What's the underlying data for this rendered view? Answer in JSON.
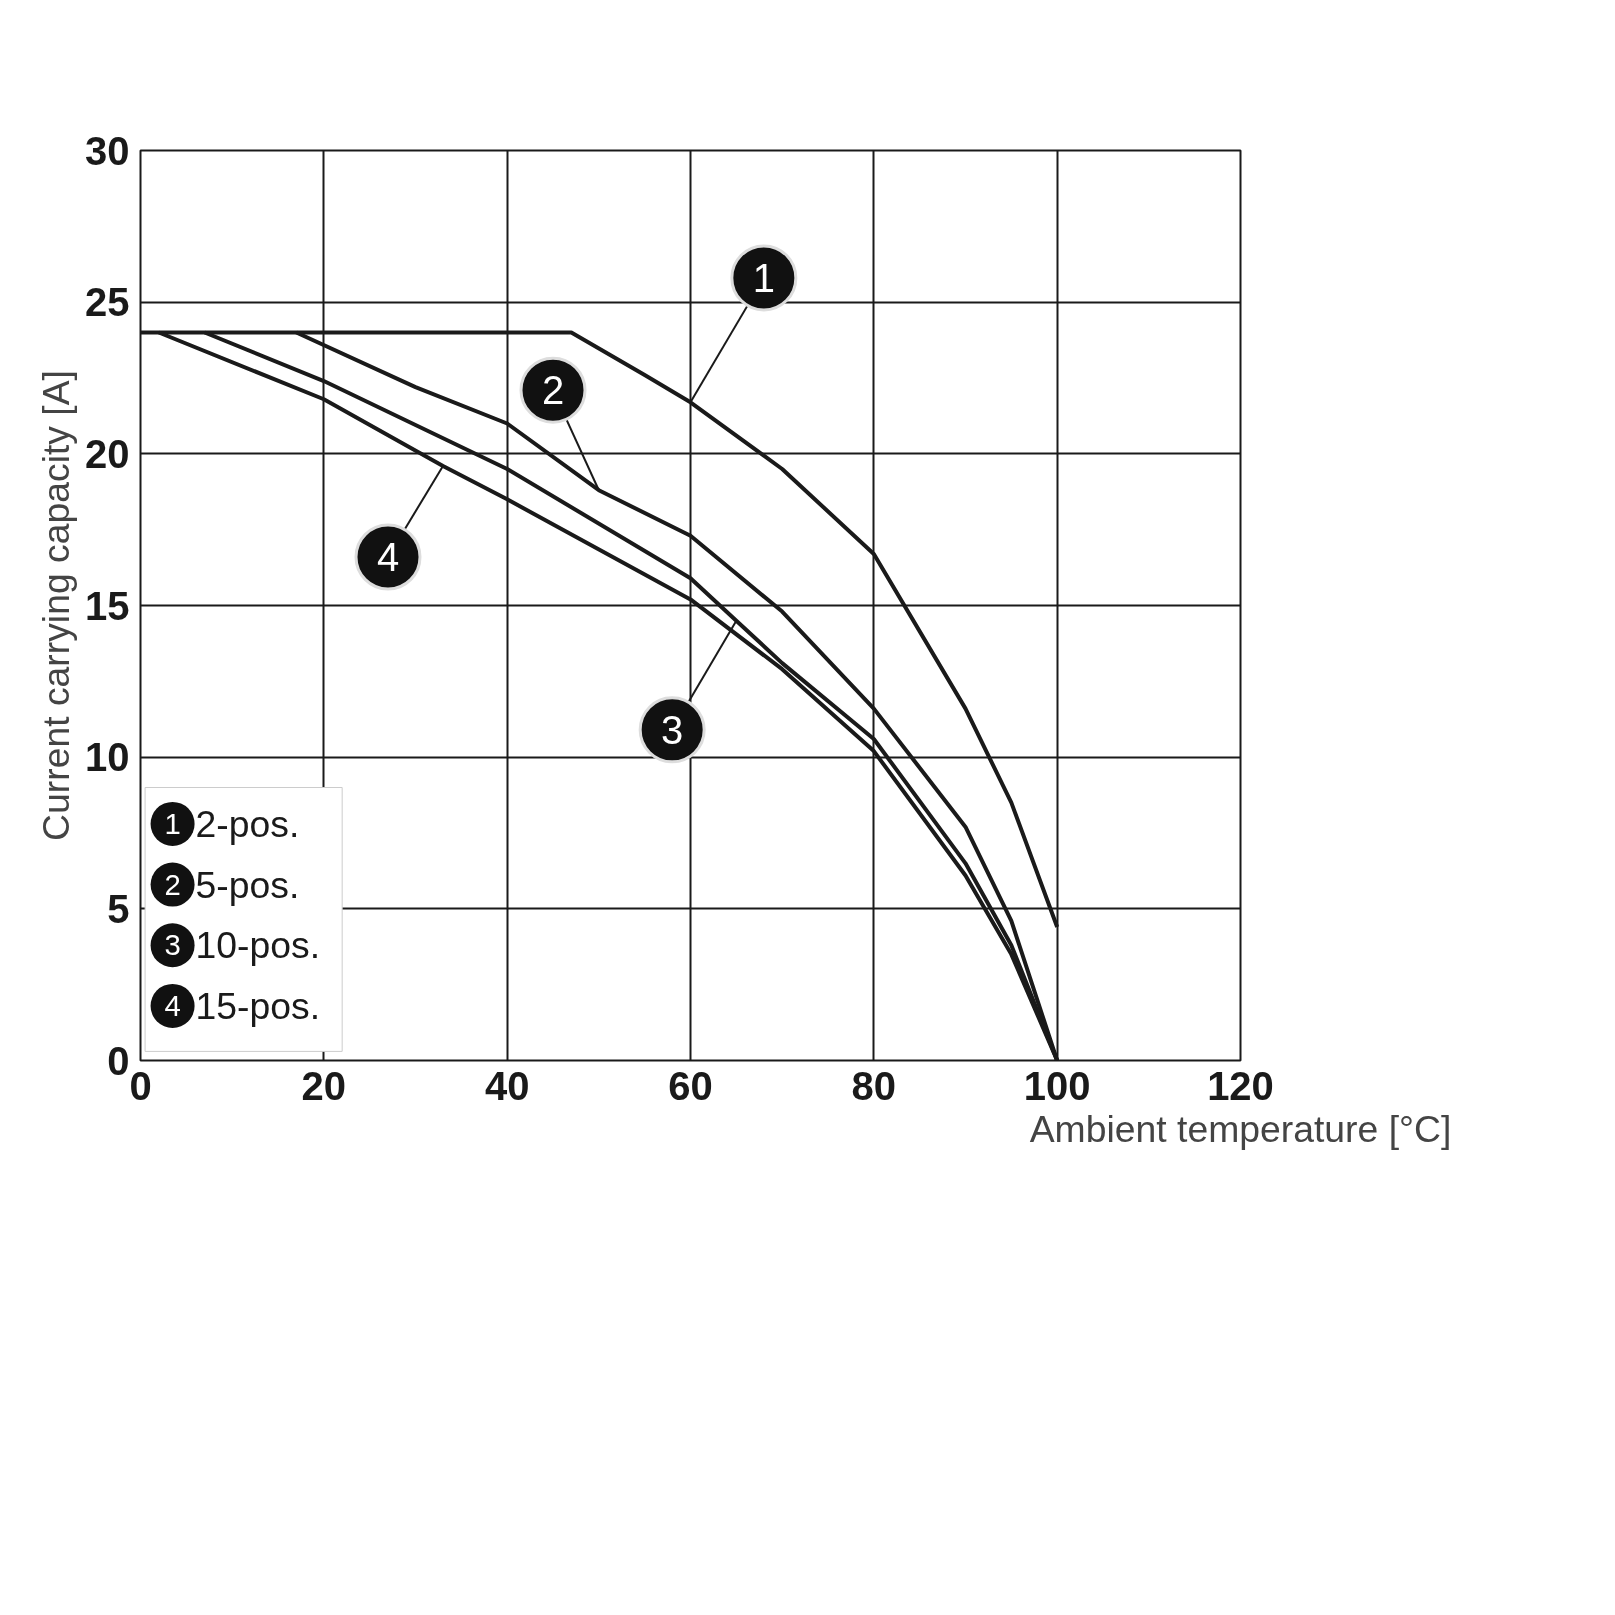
{
  "chart_data": {
    "type": "line",
    "xlabel": "Ambient temperature [°C]",
    "ylabel": "Current carrying capacity [A]",
    "xlim": [
      0,
      120
    ],
    "ylim": [
      0,
      30
    ],
    "xticks": [
      0,
      20,
      40,
      60,
      80,
      100,
      120
    ],
    "yticks": [
      0,
      5,
      10,
      15,
      20,
      25,
      30
    ],
    "grid": true,
    "legend": "bottom left",
    "marker": "none",
    "line_style": "solid",
    "series": [
      {
        "name": "2-pos.",
        "color": "#1a1a1a",
        "x": [
          0,
          47,
          55,
          60,
          70,
          80,
          90,
          95,
          100
        ],
        "values": [
          24,
          24,
          22.6,
          21.7,
          19.5,
          16.7,
          11.6,
          8.5,
          4.4
        ]
      },
      {
        "name": "5-pos.",
        "color": "#1a1a1a",
        "x": [
          17,
          30,
          40,
          50,
          60,
          70,
          80,
          90,
          95,
          100
        ],
        "values": [
          24,
          22.2,
          21,
          18.8,
          17.3,
          14.8,
          11.6,
          7.7,
          4.6,
          0
        ]
      },
      {
        "name": "10-pos.",
        "color": "#1a1a1a",
        "x": [
          7,
          20,
          40,
          60,
          65,
          70,
          80,
          90,
          95,
          100
        ],
        "values": [
          24,
          22.4,
          19.5,
          15.9,
          14.5,
          13.1,
          10.6,
          6.5,
          3.8,
          0
        ]
      },
      {
        "name": "15-pos.",
        "color": "#1a1a1a",
        "x": [
          2,
          20,
          33,
          40,
          60,
          70,
          80,
          90,
          95,
          100
        ],
        "values": [
          24,
          21.8,
          19.6,
          18.5,
          15.2,
          12.9,
          10.2,
          6.1,
          3.5,
          0
        ]
      }
    ],
    "annotations": [
      {
        "text": "1",
        "x": 60,
        "y": 21.7
      },
      {
        "text": "2",
        "x": 50,
        "y": 18.8
      },
      {
        "text": "3",
        "x": 65,
        "y": 14.5
      },
      {
        "text": "4",
        "x": 33,
        "y": 19.6
      }
    ]
  }
}
